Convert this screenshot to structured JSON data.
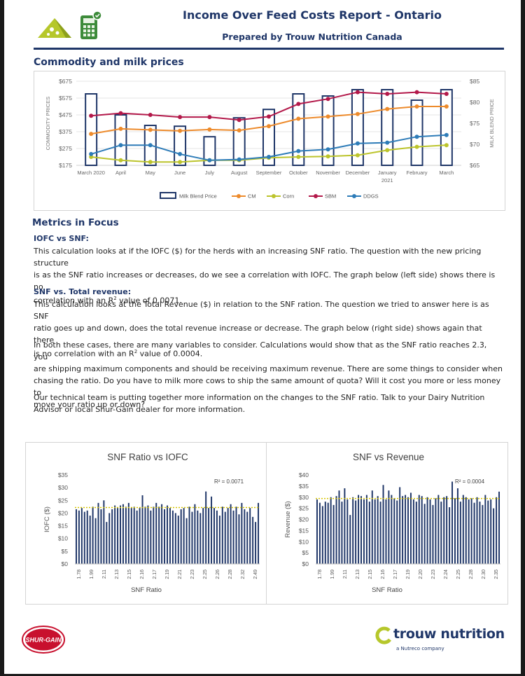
{
  "header": {
    "title": "Income Over Feed Costs Report - Ontario",
    "subtitle": "Prepared by Trouw Nutrition Canada"
  },
  "commodity_section": {
    "title": "Commodity and milk prices"
  },
  "metrics": {
    "title": "Metrics in Focus",
    "iofc_head": "IOFC vs SNF:",
    "iofc_p1": "This calculation looks at if the IOFC ($) for the herds with an increasing SNF ratio. The question with the new pricing structure",
    "iofc_p2": "is as the SNF ratio increases or decreases, do we see a correlation with IOFC. The graph below (left side) shows there is no",
    "iofc_p3a": "correlation with an R",
    "iofc_p3sup": "2",
    "iofc_p3b": " value of 0.0071.",
    "rev_head": "SNF vs. Total revenue:",
    "rev_p1": "This calculation looks at the Total Revenue ($) in relation to the SNF ration. The question we tried to answer here is as SNF",
    "rev_p2": "ratio goes up and down, does the total revenue increase or decrease. The graph below (right side) shows again that there",
    "rev_p3a": "is no correlation with an R",
    "rev_p3sup": "2",
    "rev_p3b": " value of 0.0004.",
    "both_p1": "In both these cases, there are many variables to consider. Calculations would show that as the SNF ratio reaches 2.3, you",
    "both_p2": "are shipping maximum components and should be receiving maximum revenue. There are some things to consider when",
    "both_p3": "chasing the ratio. Do you have to milk more cows to ship the same amount of quota? Will it cost you more or less money to",
    "both_p4": "move your ratio up or down?",
    "team_p1": "Our technical team is putting together more information on the changes to the SNF ratio. Talk to your Dairy Nutrition",
    "team_p2": "Advisor or local Shur-Gain dealer for more information."
  },
  "footer": {
    "shurgain": "SHUR-GAIN",
    "trouw": "trouw nutrition",
    "tagline": "a Nutreco company"
  },
  "chart_data": [
    {
      "type": "bar",
      "title": "",
      "categories": [
        "March 2020",
        "April",
        "May",
        "June",
        "July",
        "August",
        "September",
        "October",
        "November",
        "December",
        "January 2021",
        "February",
        "March"
      ],
      "ylabel": "COMMODITY PRICES",
      "y2label": "MILK BLEND PRICE",
      "ylim": [
        175,
        675
      ],
      "y_ticks": [
        "$175",
        "$275",
        "$375",
        "$475",
        "$575",
        "$675"
      ],
      "y2lim": [
        65,
        85
      ],
      "y2_ticks": [
        "$65",
        "$70",
        "$75",
        "$80",
        "$85"
      ],
      "legend_position": "bottom",
      "series": [
        {
          "name": "Milk Blend Price",
          "type": "bar",
          "axis": "right",
          "color": "#1f3668",
          "values": [
            82,
            77,
            74.5,
            74.3,
            71.8,
            76.3,
            78.3,
            82,
            81.5,
            83,
            83,
            80.5,
            83
          ]
        },
        {
          "name": "CM",
          "type": "line",
          "color": "#ed8b2c",
          "values": [
            362,
            392,
            386,
            380,
            388,
            383,
            408,
            452,
            465,
            480,
            510,
            525,
            525
          ]
        },
        {
          "name": "Corn",
          "type": "line",
          "color": "#bcc42c",
          "values": [
            225,
            205,
            195,
            195,
            205,
            205,
            220,
            225,
            228,
            235,
            265,
            285,
            295
          ]
        },
        {
          "name": "SBM",
          "type": "line",
          "color": "#b3194a",
          "values": [
            470,
            485,
            475,
            462,
            462,
            445,
            465,
            540,
            570,
            610,
            600,
            610,
            600
          ]
        },
        {
          "name": "DDGS",
          "type": "line",
          "color": "#2e7cb8",
          "values": [
            242,
            295,
            295,
            242,
            205,
            210,
            225,
            260,
            270,
            305,
            310,
            345,
            355
          ]
        }
      ]
    },
    {
      "type": "bar",
      "title": "SNF Ratio vs IOFC",
      "xlabel": "SNF Ratio",
      "ylabel": "IOFC ($)",
      "ylim": [
        0,
        35
      ],
      "y_ticks": [
        "$0",
        "$5",
        "$10",
        "$15",
        "$20",
        "$25",
        "$30",
        "$35"
      ],
      "annotation": "R² = 0.0071",
      "trendline": 22.2,
      "tick_labels": [
        "1.78",
        "1.99",
        "2.11",
        "2.13",
        "2.15",
        "2.16",
        "2.17",
        "2.19",
        "2.21",
        "2.23",
        "2.25",
        "2.26",
        "2.28",
        "2.32",
        "2.49"
      ],
      "values": [
        21.5,
        21,
        22,
        20.5,
        21,
        19,
        22.5,
        18,
        24,
        21.5,
        25,
        16.5,
        20,
        21.5,
        23,
        22,
        23,
        23.5,
        22.5,
        24,
        22,
        22.5,
        21,
        22,
        27,
        22.5,
        23,
        21,
        22.5,
        24,
        22.5,
        23.5,
        21.5,
        23,
        22,
        21,
        20,
        19,
        21.5,
        22,
        18,
        22.5,
        20.5,
        23.5,
        21,
        20,
        22,
        28.5,
        22,
        26.5,
        22,
        21,
        19,
        22.5,
        20.5,
        22,
        23.5,
        21,
        22.5,
        19.5,
        24,
        21.5,
        20.5,
        22,
        18.5,
        16.5,
        24
      ]
    },
    {
      "type": "bar",
      "title": "SNF vs Revenue",
      "xlabel": "SNF Ratio",
      "ylabel": "Revenue ($)",
      "ylim": [
        0,
        40
      ],
      "y_ticks": [
        "$0",
        "$5",
        "$10",
        "$15",
        "$20",
        "$25",
        "$30",
        "$35",
        "$40"
      ],
      "annotation": "R² = 0.0004",
      "trendline": 29.4,
      "tick_labels": [
        "1.78",
        "1.99",
        "2.11",
        "2.13",
        "2.15",
        "2.16",
        "2.17",
        "2.19",
        "2.20",
        "2.23",
        "2.24",
        "2.25",
        "2.28",
        "2.30",
        "2.35"
      ],
      "values": [
        29,
        27.5,
        26,
        28,
        27.5,
        30,
        26.5,
        30.5,
        33,
        28,
        34,
        29,
        22,
        30,
        28.5,
        31,
        30.5,
        29,
        31,
        28,
        33,
        29,
        30.5,
        28,
        35.5,
        29,
        33,
        31,
        29.5,
        28.5,
        34.5,
        30.5,
        31,
        30,
        32,
        29,
        28,
        31,
        30.5,
        27,
        30,
        29,
        26.5,
        29.5,
        31,
        28,
        30,
        30.5,
        25.5,
        37,
        29.5,
        34,
        28,
        31,
        30,
        29,
        29.5,
        27.5,
        30,
        28,
        26.5,
        31,
        28.5,
        29,
        25,
        30,
        32.5
      ]
    }
  ]
}
